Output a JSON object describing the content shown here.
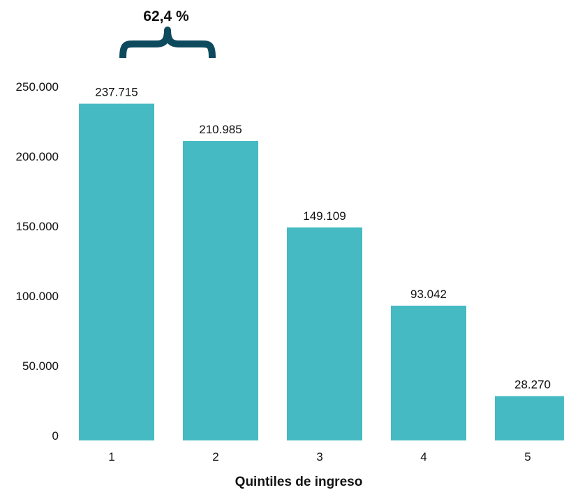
{
  "chart_data": {
    "type": "bar",
    "categories": [
      "1",
      "2",
      "3",
      "4",
      "5"
    ],
    "values": [
      237715,
      210985,
      149109,
      93042,
      28270
    ],
    "value_labels": [
      "237.715",
      "210.985",
      "149.109",
      "93.042",
      "28.270"
    ],
    "y_ticks": [
      0,
      50000,
      100000,
      150000,
      200000,
      250000
    ],
    "y_tick_labels": [
      "0",
      "50.000",
      "100.000",
      "150.000",
      "200.000",
      "250.000"
    ],
    "ylim": [
      0,
      250000
    ],
    "xlabel": "Quintiles de ingreso",
    "ylabel": "",
    "title": "",
    "grid": false,
    "bar_color": "#45BAC3",
    "annotation": {
      "text": "62,4 %",
      "spans_categories": [
        "1",
        "2"
      ],
      "brace_color": "#0E4A5E"
    }
  }
}
